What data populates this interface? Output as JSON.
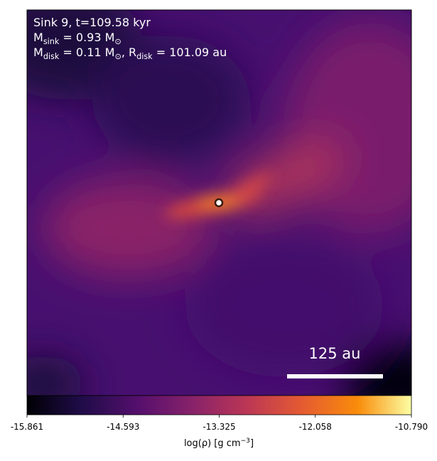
{
  "chart_data": {
    "type": "image",
    "annotations": [
      [
        {
          "text": "Sink 9, t=109.58 kyr"
        }
      ],
      [
        {
          "text": "M"
        },
        {
          "sub": "sink"
        },
        {
          "text": " = 0.93 M"
        },
        {
          "sub": "⊙"
        }
      ],
      [
        {
          "text": "M"
        },
        {
          "sub": "disk"
        },
        {
          "text": " = 0.11 M"
        },
        {
          "sub": "⊙"
        },
        {
          "text": ", R"
        },
        {
          "sub": "disk"
        },
        {
          "text": " = 101.09 au"
        }
      ]
    ],
    "scalebar": {
      "label": "125 au"
    },
    "colormap": "inferno",
    "colorbar": {
      "label": [
        {
          "text": "log(ρ) [g cm"
        },
        {
          "sup": "−3"
        },
        {
          "text": "]"
        }
      ],
      "clim": [
        -15.861,
        -10.79
      ],
      "ticks": [
        -15.861,
        -14.593,
        -13.325,
        -12.058,
        {
          "value": -10.79,
          "label": "-10.790"
        }
      ]
    }
  }
}
